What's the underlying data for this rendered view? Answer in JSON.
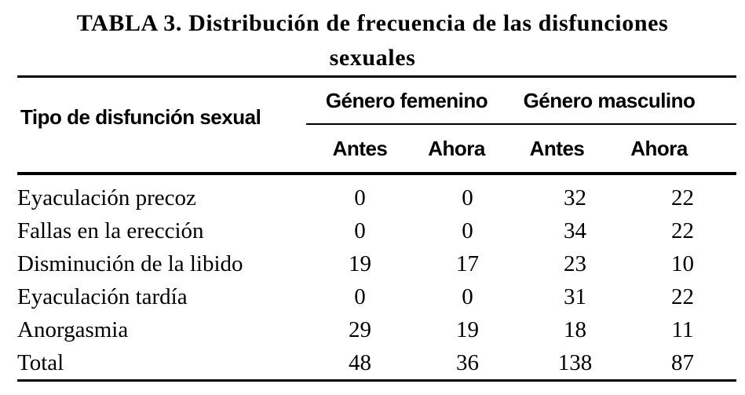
{
  "table": {
    "title": {
      "line1": "TABLA 3. Distribución de frecuencia de las disfunciones",
      "line2": "sexuales"
    },
    "header": {
      "row_header": "Tipo de disfunción sexual",
      "groups": [
        {
          "label": "Género femenino"
        },
        {
          "label": "Género masculino"
        }
      ],
      "subheaders": [
        "Antes",
        "Ahora",
        "Antes",
        "Ahora"
      ]
    },
    "rows": [
      {
        "label": "Eyaculación precoz",
        "values": [
          "0",
          "0",
          "32",
          "22"
        ]
      },
      {
        "label": "Fallas en la erección",
        "values": [
          "0",
          "0",
          "34",
          "22"
        ]
      },
      {
        "label": "Disminución de la libido",
        "values": [
          "19",
          "17",
          "23",
          "10"
        ]
      },
      {
        "label": "Eyaculación tardía",
        "values": [
          "0",
          "0",
          "31",
          "22"
        ]
      },
      {
        "label": "Anorgasmia",
        "values": [
          "29",
          "19",
          "18",
          "11"
        ]
      },
      {
        "label": "Total",
        "values": [
          "48",
          "36",
          "138",
          "87"
        ]
      }
    ],
    "colors": {
      "text": "#000000",
      "background": "#ffffff",
      "rule": "#000000"
    }
  }
}
